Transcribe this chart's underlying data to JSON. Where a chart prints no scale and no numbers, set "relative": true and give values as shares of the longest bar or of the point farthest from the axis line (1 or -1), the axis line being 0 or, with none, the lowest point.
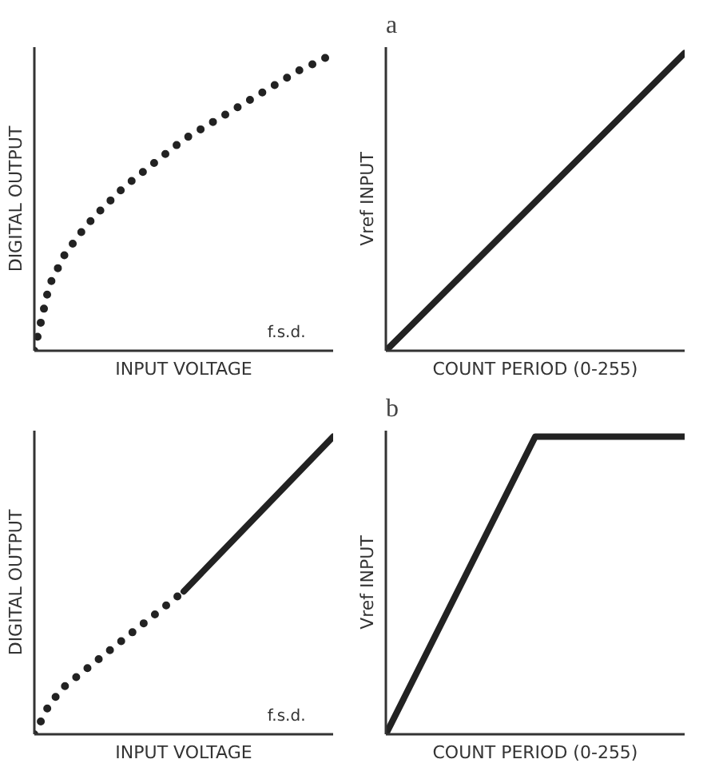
{
  "chart_data": [
    {
      "type": "line",
      "xlabel": "INPUT VOLTAGE",
      "ylabel": "DIGITAL OUTPUT",
      "relative": true,
      "line_style": "dotted",
      "annotations": [
        "f.s.d."
      ],
      "categories": [
        null,
        null,
        null,
        null,
        null,
        null,
        null,
        null,
        null,
        null,
        null,
        null,
        null,
        null,
        null,
        null,
        null,
        null,
        null,
        null,
        null
      ],
      "series": [
        {
          "color": "#222222",
          "values": [
            0,
            0.22,
            0.32,
            0.39,
            0.45,
            0.5,
            0.55,
            0.59,
            0.63,
            0.67,
            0.71,
            0.74,
            0.77,
            0.8,
            0.83,
            0.86,
            0.89,
            0.92,
            0.95,
            0.97,
            1.0
          ]
        }
      ]
    },
    {
      "type": "line",
      "title": "a",
      "xlabel": "COUNT PERIOD (0-255)",
      "ylabel": "Vref INPUT",
      "relative": true,
      "line_style": "solid",
      "categories": [
        null,
        null
      ],
      "series": [
        {
          "color": "#222222",
          "values": [
            0,
            1
          ]
        }
      ]
    },
    {
      "type": "line",
      "xlabel": "INPUT VOLTAGE",
      "ylabel": "DIGITAL OUTPUT",
      "relative": true,
      "annotations": [
        "f.s.d."
      ],
      "categories": [
        null,
        null,
        null,
        null,
        null,
        null,
        null,
        null,
        null,
        null,
        null,
        null,
        null,
        null,
        null,
        null,
        null,
        null,
        null,
        null,
        null
      ],
      "series": [
        {
          "line_style": "dotted",
          "color": "#222222",
          "values": [
            0,
            0.1,
            0.16,
            0.2,
            0.24,
            0.28,
            0.32,
            0.36,
            0.4,
            0.44,
            0.48,
            null,
            null,
            null,
            null,
            null,
            null,
            null,
            null,
            null,
            null
          ]
        },
        {
          "line_style": "solid",
          "color": "#222222",
          "values": [
            null,
            null,
            null,
            null,
            null,
            null,
            null,
            null,
            null,
            null,
            0.48,
            null,
            null,
            null,
            null,
            null,
            null,
            null,
            null,
            null,
            1.0
          ]
        }
      ]
    },
    {
      "type": "line",
      "title": "b",
      "xlabel": "COUNT PERIOD (0-255)",
      "ylabel": "Vref INPUT",
      "relative": true,
      "line_style": "solid",
      "categories": [
        null,
        null,
        null
      ],
      "series": [
        {
          "color": "#222222",
          "values": [
            0,
            1,
            1
          ]
        }
      ]
    }
  ]
}
